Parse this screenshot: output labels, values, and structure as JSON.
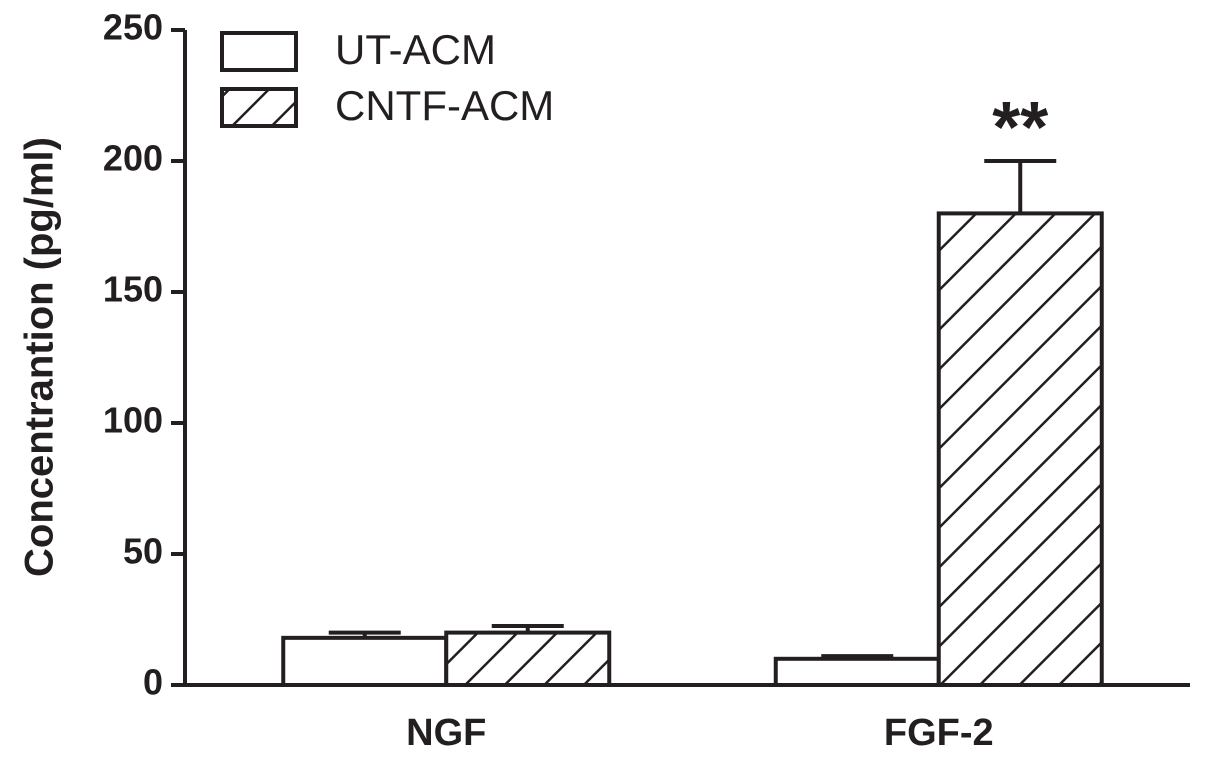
{
  "chart_data": {
    "type": "bar",
    "y_label": "Concentrantion (pg/ml)",
    "categories": [
      "NGF",
      "FGF-2"
    ],
    "series": [
      {
        "name": "UT-ACM",
        "color": "#ffffff",
        "hatch": false,
        "values": [
          18,
          10
        ],
        "errors": [
          2,
          1
        ]
      },
      {
        "name": "CNTF-ACM",
        "color": "#ffffff",
        "hatch": true,
        "values": [
          20,
          180
        ],
        "errors": [
          2.5,
          20
        ]
      }
    ],
    "annotations": [
      "**"
    ],
    "ylim": [
      0,
      250
    ],
    "yticks": [
      0,
      50,
      100,
      150,
      200,
      250
    ],
    "legend": "upper left"
  }
}
